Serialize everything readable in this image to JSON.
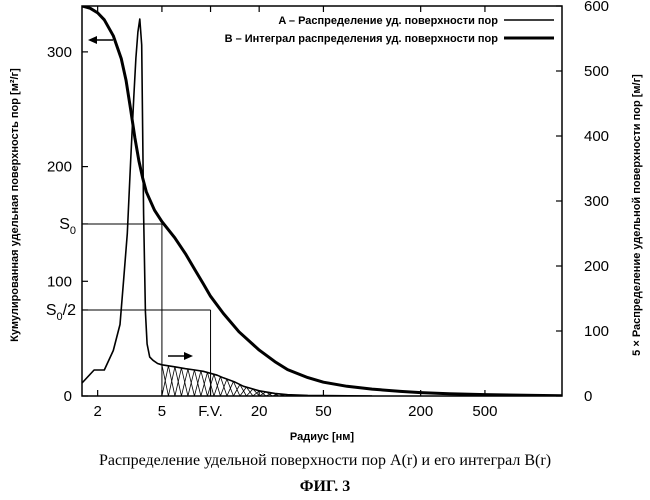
{
  "chart_data": {
    "type": "line",
    "title": "",
    "xlabel": "Радиус [нм]",
    "ylabel_left": "Кумулированная удельная поверхность пор [м²/г]",
    "ylabel_right": "5 × Распределение удельной поверхности пор [м/г]",
    "x_scale": "log",
    "xlim": [
      1.6,
      1500
    ],
    "ylim_left": [
      0,
      340
    ],
    "ylim_right": [
      0,
      600
    ],
    "x_ticks": [
      {
        "value": 2,
        "label": "2"
      },
      {
        "value": 5,
        "label": "5"
      },
      {
        "value": 10,
        "label": "F.V."
      },
      {
        "value": 20,
        "label": "20"
      },
      {
        "value": 50,
        "label": "50"
      },
      {
        "value": 200,
        "label": "200"
      },
      {
        "value": 500,
        "label": "500"
      }
    ],
    "y_left_ticks": [
      {
        "value": 0,
        "label": "0"
      },
      {
        "value": 100,
        "label": "100"
      },
      {
        "value": 200,
        "label": "200"
      },
      {
        "value": 300,
        "label": "300"
      }
    ],
    "y_left_marks": [
      {
        "value": 150,
        "label": "S",
        "sub": "0"
      },
      {
        "value": 75,
        "label": "S",
        "sub": "0",
        "suffix": "/2"
      }
    ],
    "y_right_ticks": [
      0,
      100,
      200,
      300,
      400,
      500,
      600
    ],
    "legend_position": "top-right",
    "series": [
      {
        "name": "A – Распределение уд. поверхности пор",
        "axis": "right",
        "x": [
          1.6,
          1.9,
          2.2,
          2.5,
          2.75,
          2.9,
          3.05,
          3.2,
          3.35,
          3.45,
          3.55,
          3.65,
          3.75,
          3.85,
          3.95,
          4.05,
          4.2,
          4.4,
          4.7,
          5,
          6,
          7,
          8,
          9,
          10,
          11,
          12,
          14,
          16,
          20,
          25,
          30,
          40,
          60,
          100
        ],
        "y": [
          20,
          40,
          40,
          70,
          110,
          180,
          250,
          360,
          460,
          520,
          560,
          580,
          540,
          280,
          130,
          80,
          60,
          55,
          50,
          48,
          45,
          42,
          40,
          38,
          35,
          32,
          28,
          22,
          15,
          8,
          4,
          2,
          1,
          0.5,
          0
        ]
      },
      {
        "name": "B – Интеграл распределения уд. поверхности пор",
        "axis": "left",
        "x": [
          1.6,
          1.8,
          2.0,
          2.2,
          2.5,
          2.8,
          3.0,
          3.2,
          3.4,
          3.6,
          3.8,
          4.0,
          4.5,
          5.0,
          6.0,
          7.0,
          8.0,
          9.0,
          10.0,
          12,
          15,
          20,
          25,
          30,
          40,
          50,
          70,
          100,
          150,
          200,
          300,
          500,
          1000,
          1500
        ],
        "y": [
          340,
          338,
          334,
          328,
          314,
          294,
          275,
          250,
          225,
          205,
          190,
          178,
          162,
          152,
          138,
          124,
          110,
          98,
          87,
          72,
          56,
          40,
          30,
          23,
          16,
          12,
          8.5,
          6,
          4,
          3,
          2,
          1.2,
          0.5,
          0.3
        ]
      }
    ],
    "annotations": [
      {
        "type": "arrow",
        "direction": "left",
        "target_axis": "left"
      },
      {
        "type": "arrow",
        "direction": "right",
        "target_axis": "right"
      },
      {
        "type": "hline",
        "y_left": 150,
        "to_x": 5.0
      },
      {
        "type": "vline",
        "x": 5.0
      },
      {
        "type": "hline",
        "y_left": 75,
        "to_x": 10.0
      },
      {
        "type": "vline",
        "x": 10.0
      },
      {
        "type": "hatched-region",
        "from_x": 5.0,
        "to_x": 30,
        "series": "A"
      }
    ]
  },
  "caption": "Распределение удельной поверхности пор A(r) и его интеграл B(r)",
  "figure_label": "ФИГ. 3"
}
